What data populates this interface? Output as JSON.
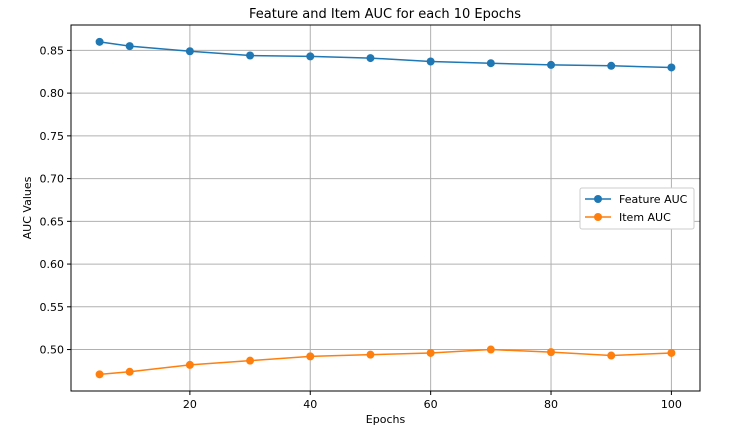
{
  "chart_data": {
    "type": "line",
    "title": "Feature and Item AUC for each 10 Epochs",
    "xlabel": "Epochs",
    "ylabel": "AUC Values",
    "xlim": [
      0.25,
      104.75
    ],
    "ylim": [
      0.4515,
      0.8797
    ],
    "xticks": [
      20,
      40,
      60,
      80,
      100
    ],
    "xtick_labels": [
      "20",
      "40",
      "60",
      "80",
      "100"
    ],
    "yticks": [
      0.5,
      0.55,
      0.6,
      0.65,
      0.7,
      0.75,
      0.8,
      0.85
    ],
    "ytick_labels": [
      "0.50",
      "0.55",
      "0.60",
      "0.65",
      "0.70",
      "0.75",
      "0.80",
      "0.85"
    ],
    "grid": true,
    "legend_position": "center-right",
    "x": [
      5,
      10,
      20,
      30,
      40,
      50,
      60,
      70,
      80,
      90,
      100
    ],
    "series": [
      {
        "name": "Feature AUC",
        "color": "#1f77b4",
        "values": [
          0.86,
          0.855,
          0.849,
          0.844,
          0.843,
          0.841,
          0.837,
          0.835,
          0.833,
          0.832,
          0.83
        ]
      },
      {
        "name": "Item AUC",
        "color": "#ff7f0e",
        "values": [
          0.471,
          0.474,
          0.482,
          0.487,
          0.492,
          0.494,
          0.496,
          0.5,
          0.497,
          0.493,
          0.496
        ]
      }
    ]
  }
}
